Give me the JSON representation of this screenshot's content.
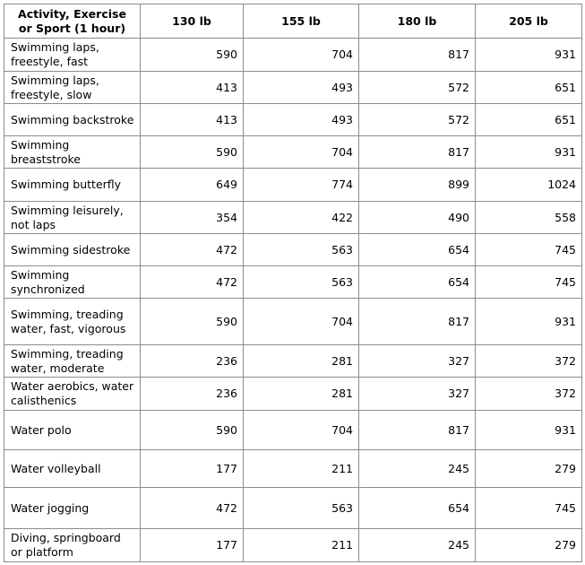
{
  "headers": [
    "Activity, Exercise or Sport (1 hour)",
    "130 lb",
    "155 lb",
    "180 lb",
    "205 lb"
  ],
  "rows": [
    {
      "activity": "Swimming laps, freestyle, fast",
      "values": [
        "590",
        "704",
        "817",
        "931"
      ]
    },
    {
      "activity": "Swimming laps, freestyle, slow",
      "values": [
        "413",
        "493",
        "572",
        "651"
      ]
    },
    {
      "activity": "Swimming backstroke",
      "values": [
        "413",
        "493",
        "572",
        "651"
      ]
    },
    {
      "activity": "Swimming breaststroke",
      "values": [
        "590",
        "704",
        "817",
        "931"
      ]
    },
    {
      "activity": "Swimming butterfly",
      "values": [
        "649",
        "774",
        "899",
        "1024"
      ]
    },
    {
      "activity": "Swimming leisurely, not laps",
      "values": [
        "354",
        "422",
        "490",
        "558"
      ]
    },
    {
      "activity": "Swimming sidestroke",
      "values": [
        "472",
        "563",
        "654",
        "745"
      ]
    },
    {
      "activity": "Swimming synchronized",
      "values": [
        "472",
        "563",
        "654",
        "745"
      ]
    },
    {
      "activity": "Swimming, treading water, fast, vigorous",
      "values": [
        "590",
        "704",
        "817",
        "931"
      ]
    },
    {
      "activity": "Swimming, treading water, moderate",
      "values": [
        "236",
        "281",
        "327",
        "372"
      ]
    },
    {
      "activity": "Water aerobics, water calisthenics",
      "values": [
        "236",
        "281",
        "327",
        "372"
      ]
    },
    {
      "activity": "Water polo",
      "values": [
        "590",
        "704",
        "817",
        "931"
      ]
    },
    {
      "activity": "Water volleyball",
      "values": [
        "177",
        "211",
        "245",
        "279"
      ]
    },
    {
      "activity": "Water jogging",
      "values": [
        "472",
        "563",
        "654",
        "745"
      ]
    },
    {
      "activity": "Diving, springboard or platform",
      "values": [
        "177",
        "211",
        "245",
        "279"
      ]
    }
  ]
}
